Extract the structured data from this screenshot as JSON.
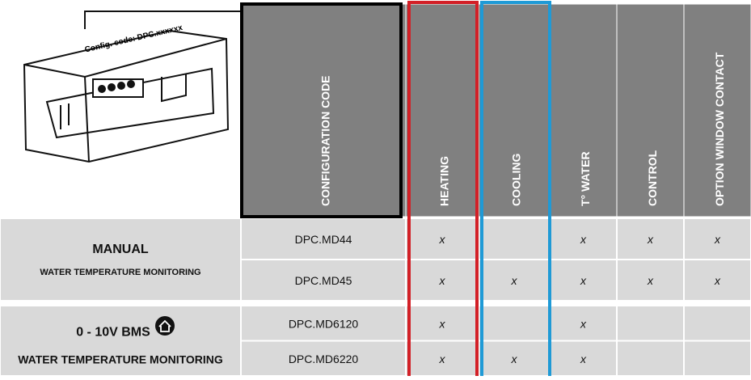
{
  "header": {
    "illustration_label": "Config. code: DPC.xxxxxx",
    "columns": [
      "CONFIGURATION CODE",
      "HEATING",
      "COOLING",
      "T° WATER",
      "CONTROL",
      "OPTION WINDOW CONTACT"
    ]
  },
  "groups": [
    {
      "title": "MANUAL",
      "subtitle": "WATER TEMPERATURE MONITORING",
      "rows": [
        [
          "DPC.MD44",
          "x",
          null,
          "x",
          "x",
          "x"
        ],
        [
          "DPC.MD45",
          "x",
          "x",
          "x",
          "x",
          "x"
        ]
      ]
    },
    {
      "title": "0 - 10V BMS",
      "subtitle": "WATER TEMPERATURE MONITORING",
      "rows": [
        [
          "DPC.MD6120",
          "x",
          null,
          "x",
          null,
          null
        ],
        [
          "DPC.MD6220",
          "x",
          "x",
          "x",
          null,
          null
        ]
      ]
    }
  ]
}
